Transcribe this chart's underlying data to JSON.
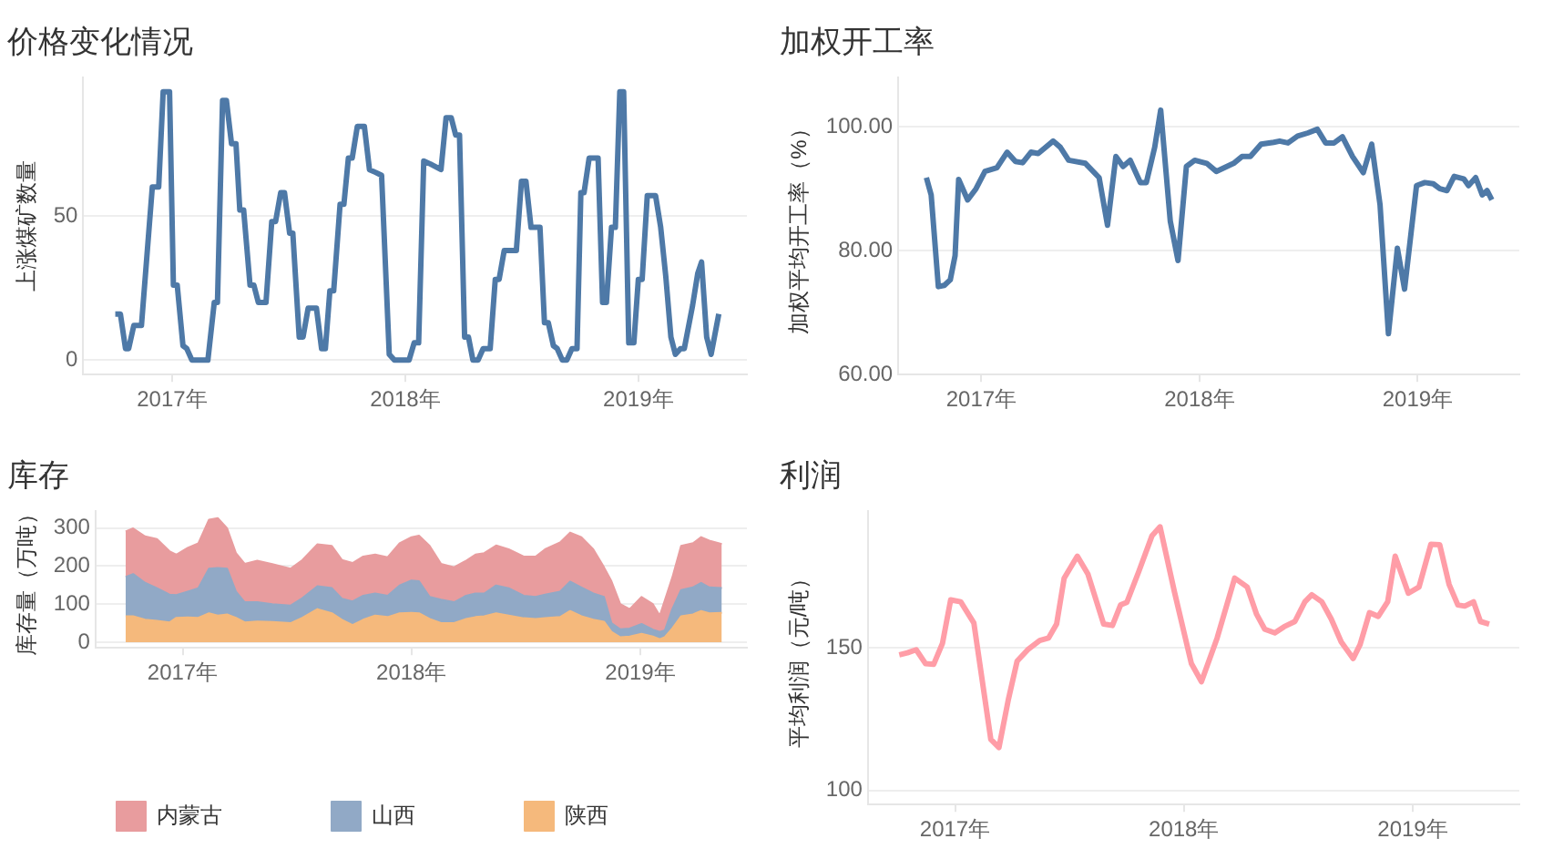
{
  "chart_data": [
    {
      "type": "line",
      "title": "价格变化情况",
      "ylabel": "上涨煤矿数量",
      "grid": "y",
      "legend": false,
      "xlim": [
        "2016-08-15",
        "2019-06-20"
      ],
      "xticks": [
        {
          "value": "2017-01-01",
          "label": "2017年"
        },
        {
          "value": "2018-01-01",
          "label": "2018年"
        },
        {
          "value": "2019-01-01",
          "label": "2019年"
        }
      ],
      "ylim": [
        -5,
        98
      ],
      "yticks": [
        0,
        50
      ],
      "x": [
        "2016-10-04",
        "2016-10-12",
        "2016-10-20",
        "2016-10-25",
        "2016-11-02",
        "2016-11-14",
        "2016-12-01",
        "2016-12-11",
        "2016-12-18",
        "2016-12-28",
        "2017-01-03",
        "2017-01-09",
        "2017-01-18",
        "2017-01-24",
        "2017-02-01",
        "2017-02-26",
        "2017-03-08",
        "2017-03-13",
        "2017-03-21",
        "2017-03-27",
        "2017-04-04",
        "2017-04-11",
        "2017-04-17",
        "2017-04-23",
        "2017-05-03",
        "2017-05-09",
        "2017-05-16",
        "2017-05-28",
        "2017-06-06",
        "2017-06-12",
        "2017-06-20",
        "2017-06-26",
        "2017-07-04",
        "2017-07-09",
        "2017-07-19",
        "2017-07-25",
        "2017-08-02",
        "2017-08-15",
        "2017-08-23",
        "2017-08-29",
        "2017-09-05",
        "2017-09-11",
        "2017-09-21",
        "2017-09-27",
        "2017-10-04",
        "2017-10-10",
        "2017-10-18",
        "2017-10-29",
        "2017-11-06",
        "2017-11-16",
        "2017-11-25",
        "2017-12-07",
        "2017-12-15",
        "2018-01-07",
        "2018-01-15",
        "2018-01-22",
        "2018-01-30",
        "2018-02-09",
        "2018-02-26",
        "2018-03-06",
        "2018-03-14",
        "2018-03-21",
        "2018-03-27",
        "2018-04-04",
        "2018-04-10",
        "2018-04-17",
        "2018-04-25",
        "2018-05-03",
        "2018-05-14",
        "2018-05-22",
        "2018-05-28",
        "2018-06-05",
        "2018-06-24",
        "2018-07-02",
        "2018-07-09",
        "2018-07-17",
        "2018-07-31",
        "2018-08-07",
        "2018-08-13",
        "2018-08-21",
        "2018-08-27",
        "2018-09-04",
        "2018-09-11",
        "2018-09-19",
        "2018-09-27",
        "2018-10-03",
        "2018-10-08",
        "2018-10-16",
        "2018-10-30",
        "2018-11-06",
        "2018-11-12",
        "2018-11-20",
        "2018-11-26",
        "2018-12-03",
        "2018-12-09",
        "2018-12-17",
        "2018-12-25",
        "2019-01-01",
        "2019-01-07",
        "2019-01-15",
        "2019-01-28",
        "2019-02-05",
        "2019-02-13",
        "2019-02-21",
        "2019-02-28",
        "2019-03-08",
        "2019-03-14",
        "2019-03-27",
        "2019-04-04",
        "2019-04-10",
        "2019-04-18",
        "2019-04-25",
        "2019-05-07"
      ],
      "series": [
        {
          "color": "#4e79a7",
          "values": [
            16,
            16,
            4,
            4,
            12,
            12,
            60,
            60,
            93,
            93,
            26,
            26,
            5,
            4,
            0,
            0,
            20,
            20,
            90,
            90,
            75,
            75,
            52,
            52,
            26,
            26,
            20,
            20,
            48,
            48,
            58,
            58,
            44,
            44,
            8,
            8,
            18,
            18,
            4,
            4,
            24,
            24,
            54,
            54,
            70,
            70,
            81,
            81,
            66,
            65,
            64,
            2,
            0,
            0,
            6,
            6,
            69,
            68,
            66,
            84,
            84,
            78,
            78,
            8,
            8,
            0,
            0,
            4,
            4,
            28,
            28,
            38,
            38,
            62,
            62,
            46,
            46,
            13,
            13,
            5,
            4,
            0,
            0,
            4,
            4,
            58,
            58,
            70,
            70,
            20,
            20,
            46,
            46,
            93,
            93,
            6,
            6,
            28,
            28,
            57,
            57,
            46,
            29,
            8,
            2,
            4,
            4,
            19,
            30,
            34,
            8,
            2,
            16
          ]
        }
      ]
    },
    {
      "type": "line",
      "title": "加权开工率",
      "ylabel": "加权平均开工率（%）",
      "grid": "y",
      "legend": false,
      "xlim": [
        "2016-08-15",
        "2019-06-20"
      ],
      "xticks": [
        {
          "value": "2017-01-01",
          "label": "2017年"
        },
        {
          "value": "2018-01-01",
          "label": "2018年"
        },
        {
          "value": "2019-01-01",
          "label": "2019年"
        }
      ],
      "ylim": [
        60,
        108
      ],
      "yticks": [
        {
          "value": 60,
          "label": "60.00"
        },
        {
          "value": 80,
          "label": "80.00"
        },
        {
          "value": 100,
          "label": "100.00"
        }
      ],
      "x": [
        "2016-10-01",
        "2016-10-09",
        "2016-10-21",
        "2016-10-31",
        "2016-11-10",
        "2016-11-18",
        "2016-11-24",
        "2016-12-09",
        "2016-12-23",
        "2017-01-07",
        "2017-01-27",
        "2017-02-13",
        "2017-02-27",
        "2017-03-11",
        "2017-03-25",
        "2017-04-06",
        "2017-05-01",
        "2017-05-13",
        "2017-05-27",
        "2017-06-24",
        "2017-07-17",
        "2017-07-31",
        "2017-08-14",
        "2017-08-26",
        "2017-09-07",
        "2017-09-24",
        "2017-10-04",
        "2017-10-18",
        "2017-10-28",
        "2017-11-13",
        "2017-11-26",
        "2017-12-10",
        "2017-12-24",
        "2018-01-13",
        "2018-01-29",
        "2018-02-27",
        "2018-03-13",
        "2018-03-27",
        "2018-04-14",
        "2018-05-05",
        "2018-05-15",
        "2018-05-29",
        "2018-06-14",
        "2018-07-01",
        "2018-07-17",
        "2018-07-31",
        "2018-08-14",
        "2018-08-28",
        "2018-09-14",
        "2018-10-02",
        "2018-10-16",
        "2018-10-30",
        "2018-11-13",
        "2018-11-28",
        "2018-12-10",
        "2018-12-30",
        "2019-01-13",
        "2019-01-27",
        "2019-02-07",
        "2019-02-19",
        "2019-03-03",
        "2019-03-19",
        "2019-03-27",
        "2019-04-08",
        "2019-04-19",
        "2019-04-27",
        "2019-05-05"
      ],
      "series": [
        {
          "color": "#4e79a7",
          "values": [
            91.8,
            89.0,
            74.2,
            74.4,
            75.3,
            79.2,
            91.5,
            88.2,
            90.0,
            92.8,
            93.4,
            95.9,
            94.4,
            94.2,
            95.9,
            95.7,
            97.7,
            96.7,
            94.6,
            94.1,
            91.8,
            84.1,
            95.2,
            93.6,
            94.6,
            91.0,
            91.0,
            96.7,
            102.7,
            84.8,
            78.4,
            93.6,
            94.6,
            94.1,
            92.8,
            94.1,
            95.2,
            95.2,
            97.2,
            97.5,
            97.7,
            97.4,
            98.5,
            99.0,
            99.6,
            97.4,
            97.4,
            98.4,
            95.2,
            92.6,
            97.2,
            87.4,
            66.6,
            80.4,
            73.8,
            90.5,
            91.0,
            90.8,
            90.0,
            89.7,
            92.0,
            91.6,
            90.5,
            91.8,
            89.0,
            89.7,
            88.2
          ]
        }
      ]
    },
    {
      "type": "area",
      "stacked": true,
      "title": "库存",
      "ylabel": "库存量（万吨）",
      "grid": "y",
      "legend": "bottom",
      "xlim": [
        "2016-08-15",
        "2019-06-20"
      ],
      "xticks": [
        {
          "value": "2017-01-01",
          "label": "2017年"
        },
        {
          "value": "2018-01-01",
          "label": "2018年"
        },
        {
          "value": "2019-01-01",
          "label": "2019年"
        }
      ],
      "ylim": [
        -15,
        345
      ],
      "yticks": [
        0,
        100,
        200,
        300
      ],
      "x": [
        "2016-10-02",
        "2016-10-14",
        "2016-11-02",
        "2016-11-21",
        "2016-12-11",
        "2016-12-22",
        "2017-01-09",
        "2017-01-26",
        "2017-02-12",
        "2017-02-26",
        "2017-03-13",
        "2017-03-27",
        "2017-04-10",
        "2017-04-30",
        "2017-05-24",
        "2017-06-22",
        "2017-07-11",
        "2017-08-04",
        "2017-08-27",
        "2017-09-12",
        "2017-09-29",
        "2017-10-16",
        "2017-11-04",
        "2017-11-24",
        "2017-12-13",
        "2018-01-01",
        "2018-01-13",
        "2018-01-30",
        "2018-02-17",
        "2018-03-10",
        "2018-03-29",
        "2018-04-13",
        "2018-04-27",
        "2018-05-16",
        "2018-06-05",
        "2018-06-29",
        "2018-07-18",
        "2018-08-02",
        "2018-08-26",
        "2018-09-11",
        "2018-09-29",
        "2018-10-18",
        "2018-11-04",
        "2018-11-16",
        "2018-11-30",
        "2018-12-15",
        "2019-01-03",
        "2019-01-21",
        "2019-02-01",
        "2019-02-09",
        "2019-02-21",
        "2019-03-07",
        "2019-03-26",
        "2019-04-08",
        "2019-04-21",
        "2019-05-11"
      ],
      "series": [
        {
          "name": "陕西",
          "color": "#f5b97c",
          "values": [
            68,
            68,
            59,
            56,
            52,
            64,
            65,
            64,
            76,
            70,
            73,
            64,
            52,
            54,
            53,
            50,
            64,
            87,
            76,
            59,
            45,
            59,
            70,
            66,
            76,
            77,
            76,
            61,
            50,
            50,
            61,
            66,
            68,
            76,
            70,
            63,
            61,
            63,
            66,
            82,
            68,
            59,
            54,
            27,
            13,
            15,
            22,
            15,
            8,
            13,
            36,
            68,
            73,
            82,
            76,
            77
          ]
        },
        {
          "name": "山西",
          "color": "#91a9c6",
          "values": [
            103,
            111,
            97,
            86,
            73,
            60,
            68,
            78,
            117,
            125,
            120,
            69,
            53,
            51,
            47,
            46,
            52,
            60,
            66,
            55,
            62,
            63,
            58,
            56,
            73,
            85,
            84,
            58,
            62,
            55,
            61,
            62,
            60,
            73,
            72,
            59,
            58,
            62,
            67,
            77,
            76,
            69,
            65,
            23,
            21,
            21,
            26,
            18,
            19,
            18,
            51,
            69,
            71,
            74,
            68,
            65
          ]
        },
        {
          "name": "内蒙古",
          "color": "#e89c9e",
          "values": [
            120,
            120,
            122,
            129,
            114,
            106,
            115,
            118,
            129,
            131,
            106,
            101,
            101,
            109,
            105,
            97,
            100,
            110,
            111,
            102,
            101,
            103,
            102,
            101,
            111,
            114,
            120,
            134,
            94,
            92,
            92,
            102,
            106,
            105,
            102,
            103,
            106,
            119,
            129,
            129,
            132,
            116,
            78,
            110,
            66,
            51,
            71,
            67,
            43,
            79,
            83,
            116,
            116,
            120,
            123,
            116
          ]
        }
      ]
    },
    {
      "type": "line",
      "title": "利润",
      "ylabel": "平均利润（元/吨）",
      "grid": "y",
      "legend": false,
      "xlim": [
        "2016-08-15",
        "2019-06-20"
      ],
      "xticks": [
        {
          "value": "2017-01-01",
          "label": "2017年"
        },
        {
          "value": "2018-01-01",
          "label": "2018年"
        },
        {
          "value": "2019-01-01",
          "label": "2019年"
        }
      ],
      "ylim": [
        95,
        198
      ],
      "yticks": [
        100,
        150
      ],
      "x": [
        "2016-10-04",
        "2016-10-17",
        "2016-10-31",
        "2016-11-15",
        "2016-11-28",
        "2016-12-12",
        "2016-12-25",
        "2017-01-10",
        "2017-01-31",
        "2017-02-27",
        "2017-03-12",
        "2017-03-27",
        "2017-04-10",
        "2017-04-27",
        "2017-05-16",
        "2017-05-30",
        "2017-06-12",
        "2017-06-24",
        "2017-07-15",
        "2017-08-01",
        "2017-08-26",
        "2017-09-09",
        "2017-09-22",
        "2017-10-02",
        "2017-10-21",
        "2017-11-11",
        "2017-11-24",
        "2017-12-17",
        "2018-01-13",
        "2018-01-29",
        "2018-02-23",
        "2018-03-23",
        "2018-04-12",
        "2018-04-27",
        "2018-05-10",
        "2018-05-26",
        "2018-06-10",
        "2018-06-27",
        "2018-07-13",
        "2018-07-24",
        "2018-08-09",
        "2018-08-24",
        "2018-09-09",
        "2018-09-28",
        "2018-10-09",
        "2018-10-24",
        "2018-11-07",
        "2018-11-22",
        "2018-12-04",
        "2018-12-25",
        "2019-01-11",
        "2019-01-30",
        "2019-02-13",
        "2019-02-28",
        "2019-03-14",
        "2019-03-25",
        "2019-04-08",
        "2019-04-19",
        "2019-05-03"
      ],
      "series": [
        {
          "color": "#ff9da7",
          "values": [
            147.5,
            148.2,
            149.3,
            144.4,
            144.2,
            151.6,
            166.8,
            166.1,
            158.7,
            117.9,
            115.0,
            131.8,
            145.3,
            149.3,
            152.5,
            153.4,
            158.3,
            174.4,
            182.1,
            175.8,
            158.3,
            157.8,
            165.0,
            165.9,
            176.7,
            189.2,
            192.4,
            169.5,
            144.4,
            138.1,
            153.4,
            174.4,
            171.3,
            161.7,
            156.5,
            155.2,
            157.4,
            159.2,
            166.1,
            168.6,
            166.1,
            160.1,
            152.0,
            146.2,
            151.1,
            162.3,
            161.0,
            166.1,
            182.1,
            169.1,
            171.3,
            186.3,
            186.1,
            172.2,
            165.0,
            164.6,
            166.1,
            159.2,
            158.3
          ]
        }
      ]
    }
  ]
}
